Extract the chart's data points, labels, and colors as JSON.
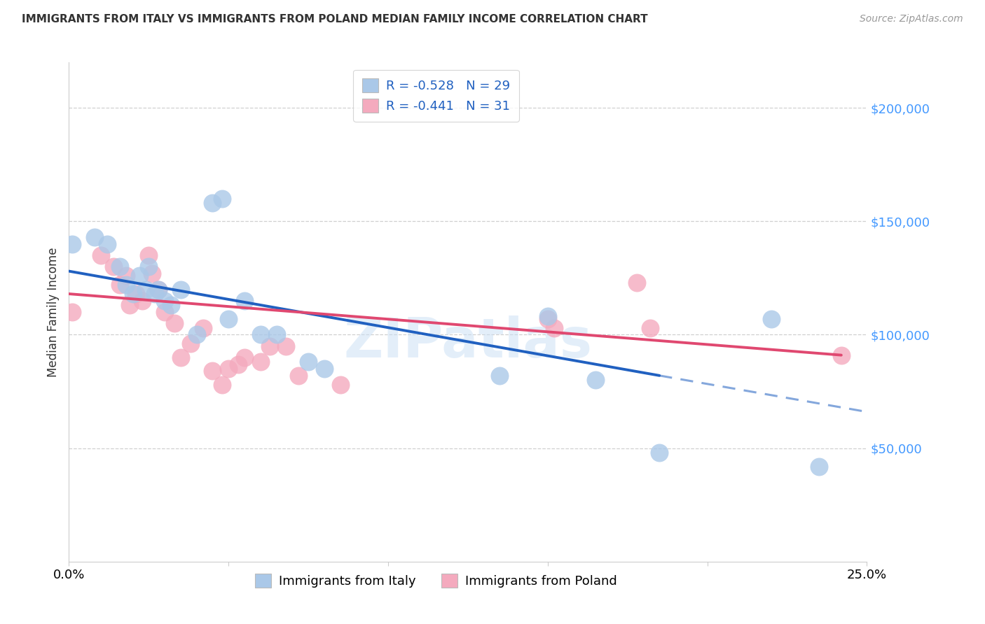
{
  "title": "IMMIGRANTS FROM ITALY VS IMMIGRANTS FROM POLAND MEDIAN FAMILY INCOME CORRELATION CHART",
  "source": "Source: ZipAtlas.com",
  "ylabel": "Median Family Income",
  "italy_label": "Immigrants from Italy",
  "poland_label": "Immigrants from Poland",
  "italy_R": -0.528,
  "italy_N": 29,
  "poland_R": -0.441,
  "poland_N": 31,
  "italy_color": "#aac8e8",
  "poland_color": "#f4aabe",
  "italy_line_color": "#2060c0",
  "poland_line_color": "#e04870",
  "background_color": "#ffffff",
  "grid_color": "#d0d0d0",
  "watermark": "ZIPatlas",
  "xlim": [
    0.0,
    0.25
  ],
  "ylim": [
    0,
    220000
  ],
  "yticks": [
    50000,
    100000,
    150000,
    200000
  ],
  "ytick_labels": [
    "$50,000",
    "$100,000",
    "$150,000",
    "$200,000"
  ],
  "xticks": [
    0.0,
    0.05,
    0.1,
    0.15,
    0.2,
    0.25
  ],
  "xtick_labels": [
    "0.0%",
    "",
    "",
    "",
    "",
    "25.0%"
  ],
  "italy_line_x0": 0.0,
  "italy_line_y0": 128000,
  "italy_line_x1": 0.185,
  "italy_line_y1": 82000,
  "italy_line_x1_solid": 0.185,
  "italy_line_x2": 0.25,
  "italy_line_y2": 66000,
  "poland_line_x0": 0.0,
  "poland_line_y0": 118000,
  "poland_line_x1": 0.242,
  "poland_line_y1": 91000,
  "italy_x": [
    0.001,
    0.008,
    0.012,
    0.016,
    0.018,
    0.02,
    0.022,
    0.024,
    0.025,
    0.027,
    0.028,
    0.03,
    0.032,
    0.035,
    0.04,
    0.045,
    0.048,
    0.05,
    0.055,
    0.06,
    0.065,
    0.075,
    0.08,
    0.15,
    0.165,
    0.185,
    0.22,
    0.235,
    0.135
  ],
  "italy_y": [
    140000,
    143000,
    140000,
    130000,
    122000,
    118000,
    126000,
    120000,
    130000,
    118000,
    120000,
    115000,
    113000,
    120000,
    100000,
    158000,
    160000,
    107000,
    115000,
    100000,
    100000,
    88000,
    85000,
    108000,
    80000,
    48000,
    107000,
    42000,
    82000
  ],
  "poland_x": [
    0.001,
    0.01,
    0.014,
    0.016,
    0.018,
    0.019,
    0.021,
    0.023,
    0.025,
    0.026,
    0.028,
    0.03,
    0.033,
    0.035,
    0.038,
    0.042,
    0.045,
    0.048,
    0.05,
    0.053,
    0.055,
    0.06,
    0.063,
    0.068,
    0.072,
    0.085,
    0.15,
    0.152,
    0.178,
    0.182,
    0.242
  ],
  "poland_y": [
    110000,
    135000,
    130000,
    122000,
    126000,
    113000,
    118000,
    115000,
    135000,
    127000,
    120000,
    110000,
    105000,
    90000,
    96000,
    103000,
    84000,
    78000,
    85000,
    87000,
    90000,
    88000,
    95000,
    95000,
    82000,
    78000,
    107000,
    103000,
    123000,
    103000,
    91000
  ]
}
